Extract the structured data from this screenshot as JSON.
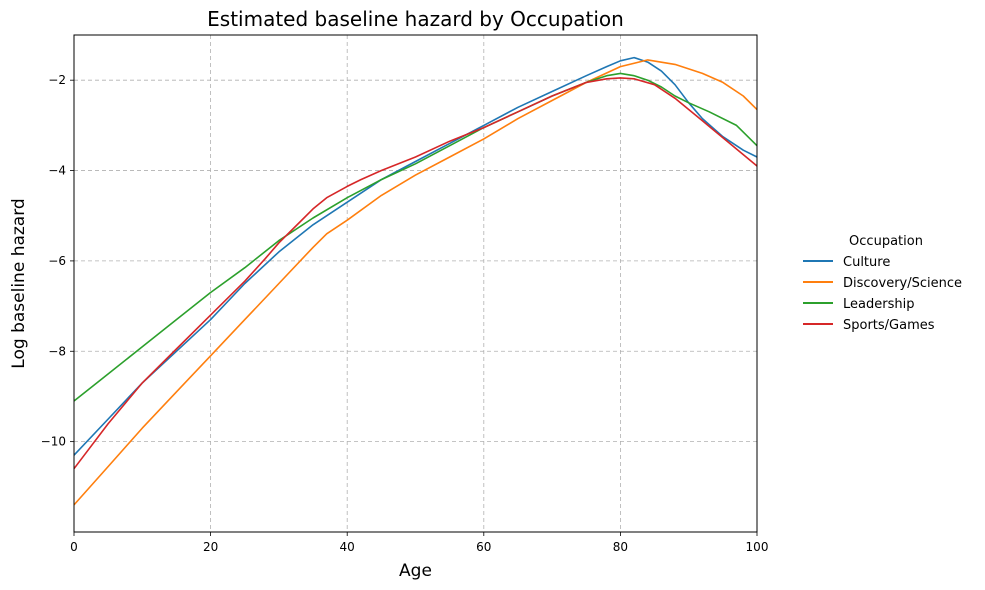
{
  "chart_data": {
    "type": "line",
    "title": "Estimated baseline hazard by Occupation",
    "xlabel": "Age",
    "ylabel": "Log baseline hazard",
    "xlim": [
      0,
      100
    ],
    "ylim": [
      -12,
      -1
    ],
    "xticks": [
      0,
      20,
      40,
      60,
      80,
      100
    ],
    "yticks": [
      -10,
      -8,
      -6,
      -4,
      -2
    ],
    "xtick_labels": [
      "0",
      "20",
      "40",
      "60",
      "80",
      "100"
    ],
    "ytick_labels": [
      "−10",
      "−8",
      "−6",
      "−4",
      "−2"
    ],
    "grid": true,
    "legend": {
      "title": "Occupation",
      "placement": "right, outside"
    },
    "series": [
      {
        "name": "Culture",
        "color": "#1f77b4",
        "x": [
          0,
          5,
          10,
          15,
          20,
          25,
          30,
          35,
          40,
          45,
          50,
          55,
          60,
          65,
          70,
          75,
          78,
          80,
          82,
          84,
          86,
          88,
          90,
          92,
          95,
          98,
          100
        ],
        "y": [
          -10.3,
          -9.5,
          -8.7,
          -8.0,
          -7.3,
          -6.5,
          -5.8,
          -5.2,
          -4.7,
          -4.2,
          -3.8,
          -3.4,
          -3.0,
          -2.6,
          -2.25,
          -1.9,
          -1.7,
          -1.57,
          -1.5,
          -1.6,
          -1.8,
          -2.1,
          -2.5,
          -2.85,
          -3.25,
          -3.55,
          -3.7
        ]
      },
      {
        "name": "Discovery/Science",
        "color": "#ff7f0e",
        "x": [
          0,
          5,
          10,
          15,
          20,
          25,
          30,
          35,
          37,
          40,
          45,
          50,
          55,
          60,
          65,
          70,
          75,
          80,
          84,
          88,
          92,
          95,
          98,
          100
        ],
        "y": [
          -11.4,
          -10.55,
          -9.7,
          -8.9,
          -8.1,
          -7.3,
          -6.5,
          -5.7,
          -5.4,
          -5.1,
          -4.55,
          -4.1,
          -3.7,
          -3.3,
          -2.85,
          -2.45,
          -2.05,
          -1.7,
          -1.55,
          -1.65,
          -1.85,
          -2.05,
          -2.35,
          -2.65
        ]
      },
      {
        "name": "Leadership",
        "color": "#2ca02c",
        "x": [
          0,
          5,
          10,
          15,
          20,
          25,
          30,
          35,
          40,
          45,
          50,
          55,
          60,
          65,
          70,
          75,
          78,
          80,
          82,
          84,
          86,
          88,
          90,
          93,
          97,
          100
        ],
        "y": [
          -9.1,
          -8.5,
          -7.9,
          -7.3,
          -6.7,
          -6.15,
          -5.55,
          -5.05,
          -4.6,
          -4.2,
          -3.85,
          -3.45,
          -3.05,
          -2.7,
          -2.35,
          -2.05,
          -1.9,
          -1.85,
          -1.9,
          -2.0,
          -2.15,
          -2.35,
          -2.5,
          -2.7,
          -3.0,
          -3.45
        ]
      },
      {
        "name": "Sports/Games",
        "color": "#d62728",
        "x": [
          0,
          5,
          10,
          15,
          20,
          25,
          28,
          30,
          33,
          35,
          37,
          40,
          42,
          45,
          50,
          55,
          60,
          65,
          70,
          75,
          78,
          80,
          82,
          85,
          88,
          92,
          96,
          100
        ],
        "y": [
          -10.6,
          -9.6,
          -8.7,
          -7.95,
          -7.2,
          -6.45,
          -5.95,
          -5.6,
          -5.15,
          -4.85,
          -4.6,
          -4.35,
          -4.2,
          -4.0,
          -3.7,
          -3.35,
          -3.05,
          -2.7,
          -2.35,
          -2.05,
          -1.97,
          -1.95,
          -1.97,
          -2.1,
          -2.4,
          -2.9,
          -3.4,
          -3.9
        ]
      }
    ]
  }
}
